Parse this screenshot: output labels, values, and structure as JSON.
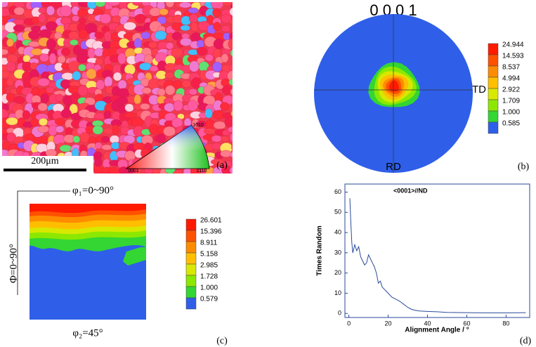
{
  "panel_a": {
    "scale_bar": "200μm",
    "ipf_keys": [
      "0001",
      "2110",
      "1010"
    ],
    "label": "(a)"
  },
  "panel_b": {
    "title": "0 0 0 1",
    "td": "TD",
    "rd": "RD",
    "label": "(b)",
    "levels": [
      "24.944",
      "14.593",
      "8.537",
      "4.994",
      "2.922",
      "1.709",
      "1.000",
      "0.585"
    ],
    "colors": [
      "#ff1a00",
      "#ff5200",
      "#ff8c00",
      "#ffbf00",
      "#d8e800",
      "#8ce800",
      "#33d633",
      "#2f5fe8"
    ]
  },
  "panel_c": {
    "phi1": "φ₁=0~90°",
    "Phi": "Φ=0~90°",
    "phi2": "φ₂=45°",
    "label": "(c)",
    "levels": [
      "26.601",
      "15.396",
      "8.911",
      "5.158",
      "2.985",
      "1.728",
      "1.000",
      "0.579"
    ],
    "colors": [
      "#ff1a00",
      "#ff5200",
      "#ff8c00",
      "#ffbf00",
      "#d8e800",
      "#8ce800",
      "#33d633",
      "#2f5fe8"
    ]
  },
  "chart_data": {
    "type": "line",
    "annotation": "<0001>//ND",
    "xlabel": "Alignment Angle / °",
    "ylabel": "Times Random",
    "panel_label": "(d)",
    "x": [
      0.5,
      1,
      1.5,
      2,
      3,
      4,
      5,
      6,
      7,
      8,
      9,
      10,
      11,
      12,
      13,
      14,
      15,
      16,
      17,
      18,
      19,
      20,
      22,
      24,
      26,
      28,
      30,
      32,
      34,
      36,
      40,
      45,
      50,
      60,
      70,
      80,
      90
    ],
    "series": [
      {
        "color": "#2a4a9a",
        "values": [
          57,
          45,
          35,
          30,
          34,
          31,
          33,
          28,
          26,
          24,
          25,
          29,
          27,
          25,
          23,
          20,
          15,
          16,
          13,
          12,
          11,
          10,
          8,
          7,
          6,
          4.5,
          3,
          2,
          1.5,
          1.2,
          1,
          0.8,
          0.5,
          0.4,
          0.3,
          0.3,
          0.4
        ]
      }
    ],
    "xlim": [
      -2,
      92
    ],
    "xticks": [
      0,
      20,
      40,
      60,
      80
    ],
    "ylim": [
      -2,
      64
    ],
    "yticks": [
      0,
      10,
      20,
      30,
      40,
      50,
      60
    ]
  }
}
